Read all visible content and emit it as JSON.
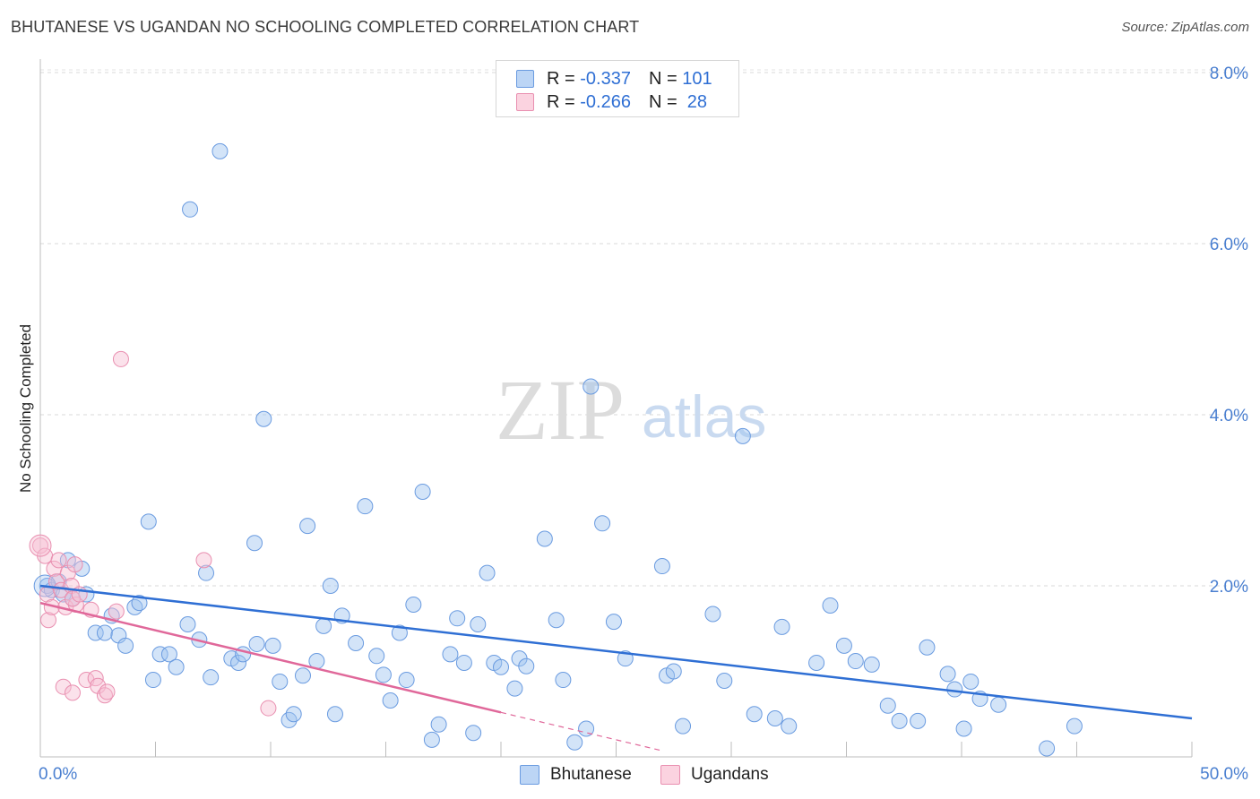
{
  "title": "BHUTANESE VS UGANDAN NO SCHOOLING COMPLETED CORRELATION CHART",
  "source": "Source: ZipAtlas.com",
  "watermark": {
    "zip": "ZIP",
    "atlas": "atlas"
  },
  "legend": {
    "rows": [
      {
        "r_label": "R = ",
        "r_value": "-0.337",
        "n_label": "N = ",
        "n_value": "101",
        "color": "#9ec3f0",
        "border": "#6a9be0"
      },
      {
        "r_label": "R = ",
        "r_value": "-0.266",
        "n_label": "N = ",
        "n_value": " 28",
        "color": "#f7bfd2",
        "border": "#e98fb0"
      }
    ]
  },
  "bottom_legend": [
    {
      "label": "Bhutanese",
      "color": "#bcd5f5",
      "border": "#6a9be0"
    },
    {
      "label": "Ugandans",
      "color": "#fbd3e0",
      "border": "#e98fb0"
    }
  ],
  "chart_data": {
    "type": "scatter",
    "title": "BHUTANESE VS UGANDAN NO SCHOOLING COMPLETED CORRELATION CHART",
    "xlabel": "",
    "ylabel": "No Schooling Completed",
    "xlim": [
      0,
      50
    ],
    "ylim": [
      0,
      8.2
    ],
    "x_tick_labels": [
      "0.0%",
      "50.0%"
    ],
    "y_ticks": [
      {
        "value": 2,
        "label": "2.0%"
      },
      {
        "value": 4,
        "label": "4.0%"
      },
      {
        "value": 6,
        "label": "6.0%"
      },
      {
        "value": 8,
        "label": "8.0%"
      }
    ],
    "series": [
      {
        "name": "Bhutanese",
        "color": "#9ec3f0",
        "stroke": "#6a9be0",
        "trend": {
          "x": [
            0,
            50
          ],
          "y": [
            2.0,
            0.45
          ],
          "color": "#2f6fd4"
        },
        "points": [
          [
            0.3,
            2.0
          ],
          [
            0.5,
            1.95
          ],
          [
            0.8,
            2.05
          ],
          [
            1.0,
            1.9
          ],
          [
            1.2,
            2.3
          ],
          [
            1.4,
            1.85
          ],
          [
            1.8,
            2.2
          ],
          [
            2.0,
            1.9
          ],
          [
            2.4,
            1.45
          ],
          [
            2.8,
            1.45
          ],
          [
            3.1,
            1.65
          ],
          [
            3.4,
            1.42
          ],
          [
            3.7,
            1.3
          ],
          [
            4.1,
            1.75
          ],
          [
            4.3,
            1.8
          ],
          [
            4.7,
            2.75
          ],
          [
            4.9,
            0.9
          ],
          [
            5.2,
            1.2
          ],
          [
            5.6,
            1.2
          ],
          [
            5.9,
            1.05
          ],
          [
            6.4,
            1.55
          ],
          [
            6.5,
            6.4
          ],
          [
            6.9,
            1.37
          ],
          [
            7.2,
            2.15
          ],
          [
            7.4,
            0.93
          ],
          [
            7.8,
            7.08
          ],
          [
            8.3,
            1.15
          ],
          [
            8.6,
            1.1
          ],
          [
            8.8,
            1.2
          ],
          [
            9.3,
            2.5
          ],
          [
            9.4,
            1.32
          ],
          [
            9.7,
            3.95
          ],
          [
            10.1,
            1.3
          ],
          [
            10.4,
            0.88
          ],
          [
            10.8,
            0.43
          ],
          [
            11.0,
            0.5
          ],
          [
            11.4,
            0.95
          ],
          [
            11.6,
            2.7
          ],
          [
            12.0,
            1.12
          ],
          [
            12.3,
            1.53
          ],
          [
            12.6,
            2.0
          ],
          [
            12.8,
            0.5
          ],
          [
            13.1,
            1.65
          ],
          [
            13.7,
            1.33
          ],
          [
            14.1,
            2.93
          ],
          [
            14.6,
            1.18
          ],
          [
            14.9,
            0.96
          ],
          [
            15.2,
            0.66
          ],
          [
            15.6,
            1.45
          ],
          [
            15.9,
            0.9
          ],
          [
            16.2,
            1.78
          ],
          [
            16.6,
            3.1
          ],
          [
            17.0,
            0.2
          ],
          [
            17.3,
            0.38
          ],
          [
            17.8,
            1.2
          ],
          [
            18.1,
            1.62
          ],
          [
            18.4,
            1.1
          ],
          [
            18.8,
            0.28
          ],
          [
            19.0,
            1.55
          ],
          [
            19.4,
            2.15
          ],
          [
            19.7,
            1.1
          ],
          [
            20.0,
            1.05
          ],
          [
            20.6,
            0.8
          ],
          [
            20.8,
            1.15
          ],
          [
            21.1,
            1.06
          ],
          [
            21.9,
            2.55
          ],
          [
            22.4,
            1.6
          ],
          [
            22.7,
            0.9
          ],
          [
            23.2,
            0.17
          ],
          [
            23.7,
            0.33
          ],
          [
            23.9,
            4.33
          ],
          [
            24.4,
            2.73
          ],
          [
            24.9,
            1.58
          ],
          [
            25.4,
            1.15
          ],
          [
            27.0,
            2.23
          ],
          [
            27.2,
            0.95
          ],
          [
            27.5,
            1.0
          ],
          [
            27.9,
            0.36
          ],
          [
            29.2,
            1.67
          ],
          [
            29.7,
            0.89
          ],
          [
            30.5,
            3.75
          ],
          [
            31.0,
            0.5
          ],
          [
            31.9,
            0.45
          ],
          [
            32.2,
            1.52
          ],
          [
            32.5,
            0.36
          ],
          [
            33.7,
            1.1
          ],
          [
            34.3,
            1.77
          ],
          [
            34.9,
            1.3
          ],
          [
            35.4,
            1.12
          ],
          [
            36.1,
            1.08
          ],
          [
            36.8,
            0.6
          ],
          [
            37.3,
            0.42
          ],
          [
            38.1,
            0.42
          ],
          [
            38.5,
            1.28
          ],
          [
            39.4,
            0.97
          ],
          [
            39.7,
            0.79
          ],
          [
            40.1,
            0.33
          ],
          [
            40.4,
            0.88
          ],
          [
            40.8,
            0.68
          ],
          [
            41.6,
            0.61
          ],
          [
            43.7,
            0.1
          ],
          [
            44.9,
            0.36
          ]
        ]
      },
      {
        "name": "Ugandans",
        "color": "#f7bfd2",
        "stroke": "#e98fb0",
        "trend": {
          "x": [
            0,
            20
          ],
          "y": [
            1.8,
            0.52
          ],
          "dash_to_x": 27,
          "color": "#e0689a"
        },
        "points": [
          [
            0.0,
            2.47
          ],
          [
            0.2,
            2.35
          ],
          [
            0.3,
            1.9
          ],
          [
            0.35,
            1.6
          ],
          [
            0.5,
            1.75
          ],
          [
            0.6,
            2.2
          ],
          [
            0.7,
            2.05
          ],
          [
            0.8,
            2.3
          ],
          [
            0.9,
            1.95
          ],
          [
            1.0,
            0.82
          ],
          [
            1.1,
            1.75
          ],
          [
            1.2,
            2.15
          ],
          [
            1.35,
            2.0
          ],
          [
            1.5,
            2.25
          ],
          [
            1.55,
            1.78
          ],
          [
            1.4,
            1.85
          ],
          [
            1.4,
            0.75
          ],
          [
            1.7,
            1.9
          ],
          [
            2.0,
            0.9
          ],
          [
            2.2,
            1.72
          ],
          [
            2.4,
            0.92
          ],
          [
            2.5,
            0.83
          ],
          [
            2.8,
            0.72
          ],
          [
            2.9,
            0.76
          ],
          [
            3.3,
            1.7
          ],
          [
            3.5,
            4.65
          ],
          [
            7.1,
            2.3
          ],
          [
            9.9,
            0.57
          ]
        ]
      }
    ]
  }
}
